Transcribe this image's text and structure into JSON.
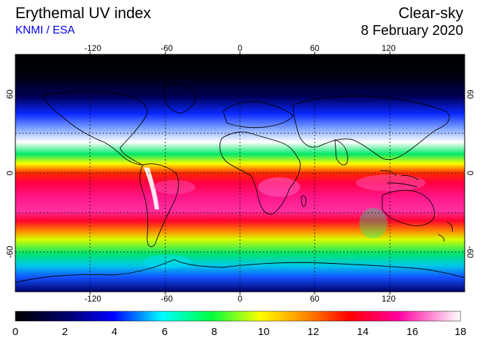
{
  "header": {
    "title": "Erythemal UV index",
    "source": "KNMI / ESA",
    "mode": "Clear-sky",
    "date": "8 February 2020"
  },
  "map": {
    "lon_ticks": [
      "-120",
      "-60",
      "0",
      "60",
      "120"
    ],
    "lat_ticks_left": [
      "60",
      "0",
      "-60"
    ],
    "lat_ticks_right": [
      "60",
      "0",
      "-60"
    ]
  },
  "colorbar": {
    "ticks": [
      "0",
      "2",
      "4",
      "6",
      "8",
      "10",
      "12",
      "14",
      "16",
      "18"
    ],
    "min": 0,
    "max": 18
  },
  "colors": {
    "title_blue": "#0000ee"
  }
}
